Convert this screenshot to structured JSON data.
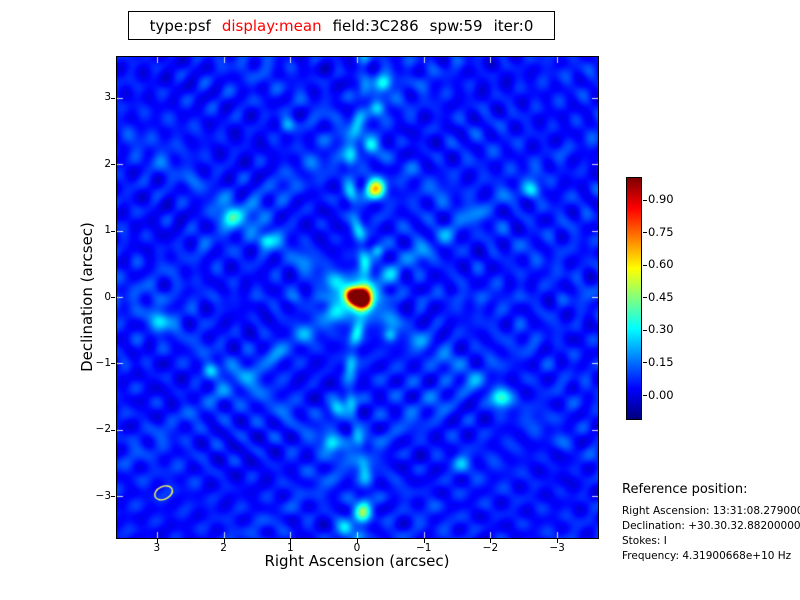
{
  "header": {
    "segments": [
      {
        "text": "type:psf",
        "color": "#000000"
      },
      {
        "text": "display:mean",
        "color": "#ff0000"
      },
      {
        "text": "field:3C286",
        "color": "#000000"
      },
      {
        "text": "spw:59",
        "color": "#000000"
      },
      {
        "text": "iter:0",
        "color": "#000000"
      }
    ]
  },
  "plot": {
    "xlabel": "Right Ascension (arcsec)",
    "ylabel": "Declination (arcsec)",
    "x_ticks": [
      {
        "label": "3",
        "value": 3
      },
      {
        "label": "2",
        "value": 2
      },
      {
        "label": "1",
        "value": 1
      },
      {
        "label": "0",
        "value": 0
      },
      {
        "label": "−1",
        "value": -1
      },
      {
        "label": "−2",
        "value": -2
      },
      {
        "label": "−3",
        "value": -3
      }
    ],
    "y_ticks": [
      {
        "label": "3",
        "value": 3
      },
      {
        "label": "2",
        "value": 2
      },
      {
        "label": "1",
        "value": 1
      },
      {
        "label": "0",
        "value": 0
      },
      {
        "label": "−1",
        "value": -1
      },
      {
        "label": "−2",
        "value": -2
      },
      {
        "label": "−3",
        "value": -3
      }
    ]
  },
  "colorbar": {
    "ticks": [
      {
        "label": "0.90",
        "value": 0.9
      },
      {
        "label": "0.75",
        "value": 0.75
      },
      {
        "label": "0.60",
        "value": 0.6
      },
      {
        "label": "0.45",
        "value": 0.45
      },
      {
        "label": "0.30",
        "value": 0.3
      },
      {
        "label": "0.15",
        "value": 0.15
      },
      {
        "label": "0.00",
        "value": 0.0
      }
    ],
    "range": [
      -0.106,
      1.0
    ]
  },
  "reference": {
    "title": "Reference position:",
    "lines": [
      "Right Ascension: 13:31:08.27900000",
      "Declination: +30.30.32.88200000",
      "Stokes: I",
      "Frequency: 4.31900668e+10 Hz"
    ]
  },
  "chart_data": {
    "type": "heatmap",
    "title": "type:psf display:mean field:3C286 spw:59 iter:0",
    "xlabel": "Right Ascension (arcsec)",
    "ylabel": "Declination (arcsec)",
    "xlim": [
      3.6,
      -3.6
    ],
    "ylim": [
      -3.6,
      3.6
    ],
    "x_ticks": [
      3,
      2,
      1,
      0,
      -1,
      -2,
      -3
    ],
    "y_ticks": [
      3,
      2,
      1,
      0,
      -1,
      -2,
      -3
    ],
    "colormap": "jet",
    "colorbar_ticks": [
      0.9,
      0.75,
      0.6,
      0.45,
      0.3,
      0.15,
      0.0
    ],
    "colorbar_range": [
      -0.106,
      1.0
    ],
    "background_level": 0.05,
    "peak": {
      "x": 0,
      "y": 0,
      "value": 1.0,
      "core_sigma_major": 0.105,
      "core_sigma_minor": 0.067,
      "core_angle_deg": -26
    },
    "sidelobes": [
      {
        "x": -0.27,
        "y": 1.64,
        "amp": 0.6,
        "sigma": 0.1
      },
      {
        "x": -0.39,
        "y": 3.22,
        "amp": 0.3,
        "sigma": 0.09
      },
      {
        "x": -0.3,
        "y": 2.85,
        "amp": 0.22,
        "sigma": 0.08
      },
      {
        "x": -0.19,
        "y": 2.29,
        "amp": 0.22,
        "sigma": 0.08
      },
      {
        "x": 1.9,
        "y": 1.23,
        "amp": 0.26,
        "sigma": 0.1
      },
      {
        "x": 1.38,
        "y": 0.86,
        "amp": 0.2,
        "sigma": 0.08
      },
      {
        "x": 2.95,
        "y": -0.35,
        "amp": 0.22,
        "sigma": 0.1
      },
      {
        "x": -2.14,
        "y": -1.52,
        "amp": 0.28,
        "sigma": 0.1
      },
      {
        "x": 0.31,
        "y": -1.67,
        "amp": 0.26,
        "sigma": 0.09
      },
      {
        "x": 0.4,
        "y": -2.2,
        "amp": 0.24,
        "sigma": 0.09
      },
      {
        "x": -0.07,
        "y": -3.24,
        "amp": 0.3,
        "sigma": 0.1
      },
      {
        "x": 0.18,
        "y": -3.48,
        "amp": 0.26,
        "sigma": 0.09
      },
      {
        "x": -2.62,
        "y": 1.62,
        "amp": 0.2,
        "sigma": 0.09
      },
      {
        "x": 2.2,
        "y": -1.1,
        "amp": 0.18,
        "sigma": 0.08
      },
      {
        "x": -1.55,
        "y": -2.5,
        "amp": 0.18,
        "sigma": 0.09
      },
      {
        "x": 1.05,
        "y": 2.6,
        "amp": 0.16,
        "sigma": 0.08
      },
      {
        "x": -0.3,
        "y": 0.71,
        "amp": 0.18,
        "sigma": 0.07
      },
      {
        "x": -0.49,
        "y": -0.57,
        "amp": 0.16,
        "sigma": 0.07
      }
    ],
    "beam_ellipse": {
      "x": 2.9,
      "y": -2.95,
      "semi_major": 0.14,
      "semi_minor": 0.095,
      "angle_deg": -25,
      "color": "#ffff55"
    },
    "description": "Interferometric point-spread function: bright elliptical peak at origin with cross-shaped sidelobe chains (vertical and ~35-degree diagonals) and faint concentric ripple interference over a blue background"
  }
}
